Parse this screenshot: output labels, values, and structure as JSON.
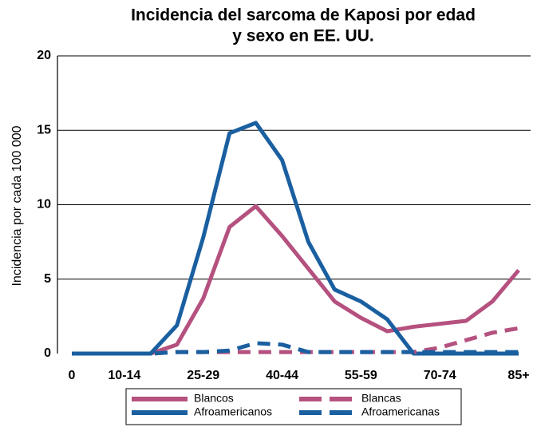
{
  "chart_data": {
    "type": "line",
    "title": [
      "Incidencia del sarcoma de Kaposi por edad",
      "y sexo en EE. UU."
    ],
    "y_label": "Incidencia por cada 100 000",
    "categories": [
      "0",
      null,
      "10-14",
      null,
      null,
      "25-29",
      null,
      null,
      "40-44",
      null,
      null,
      "55-59",
      null,
      null,
      "70-74",
      null,
      null,
      "85+"
    ],
    "series": [
      {
        "name": "Blancos",
        "color": "#b5517f",
        "dash": false,
        "values": [
          0,
          0,
          0,
          0,
          0.6,
          3.7,
          8.5,
          9.9,
          7.9,
          5.7,
          3.5,
          2.4,
          1.5,
          1.8,
          2.0,
          2.2,
          3.5,
          5.6
        ]
      },
      {
        "name": "Afroamericanos",
        "color": "#1a5fa0",
        "dash": false,
        "values": [
          0,
          0,
          0,
          0,
          1.9,
          7.8,
          14.8,
          15.5,
          13,
          7.5,
          4.3,
          3.5,
          2.3,
          0,
          0,
          0,
          0,
          0
        ]
      },
      {
        "name": "Blancas",
        "color": "#b5517f",
        "dash": true,
        "values": [
          0,
          0,
          0,
          0,
          0.1,
          0.1,
          0.1,
          0.1,
          0.1,
          0.1,
          0.1,
          0.1,
          0.1,
          0.1,
          0.4,
          0.9,
          1.4,
          1.7
        ]
      },
      {
        "name": "Afroamericanas",
        "color": "#1a5fa0",
        "dash": true,
        "values": [
          0,
          0,
          0,
          0,
          0.1,
          0.1,
          0.2,
          0.7,
          0.6,
          0.1,
          0.1,
          0.1,
          0.1,
          0.1,
          0.1,
          0.1,
          0.1,
          0.1
        ]
      }
    ],
    "ylim": [
      0,
      20
    ],
    "yticks": [
      0,
      5,
      10,
      15,
      20
    ],
    "grid": true
  }
}
